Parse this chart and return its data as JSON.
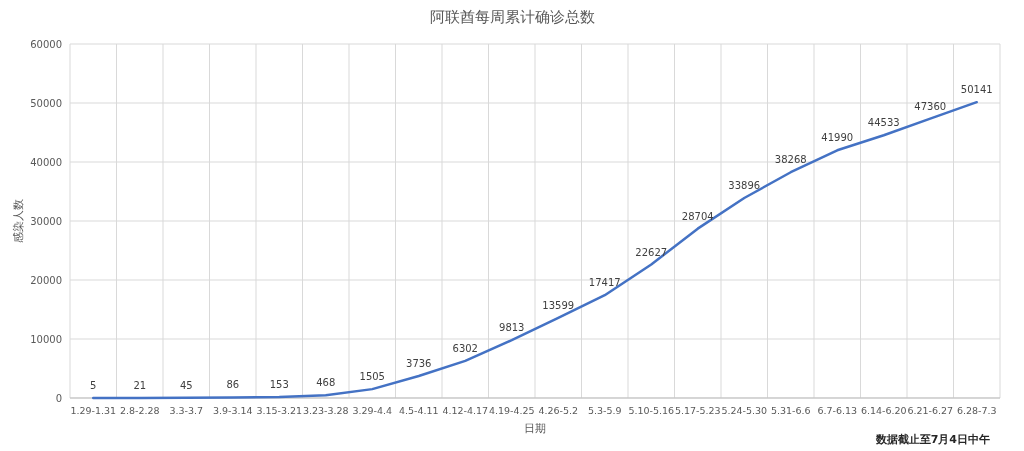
{
  "chart_data": {
    "type": "line",
    "title": "阿联酋每周累计确诊总数",
    "xlabel": "日期",
    "ylabel": "感染人数",
    "categories": [
      "1.29-1.31",
      "2.8-2.28",
      "3.3-3.7",
      "3.9-3.14",
      "3.15-3.21",
      "3.23-3.28",
      "3.29-4.4",
      "4.5-4.11",
      "4.12-4.17",
      "4.19-4.25",
      "4.26-5.2",
      "5.3-5.9",
      "5.10-5.16",
      "5.17-5.23",
      "5.24-5.30",
      "5.31-6.6",
      "6.7-6.13",
      "6.14-6.20",
      "6.21-6.27",
      "6.28-7.3"
    ],
    "series": [
      {
        "color": "#4472c4",
        "values": [
          5,
          21,
          45,
          86,
          153,
          468,
          1505,
          3736,
          6302,
          9813,
          13599,
          17417,
          22627,
          28704,
          33896,
          38268,
          41990,
          44533,
          47360,
          50141
        ]
      }
    ],
    "ylim": [
      0,
      60000
    ],
    "yticks": [
      0,
      10000,
      20000,
      30000,
      40000,
      50000,
      60000
    ],
    "grid": true,
    "data_labels": true,
    "annotations": [
      "数据截止至7月4日中午"
    ]
  }
}
